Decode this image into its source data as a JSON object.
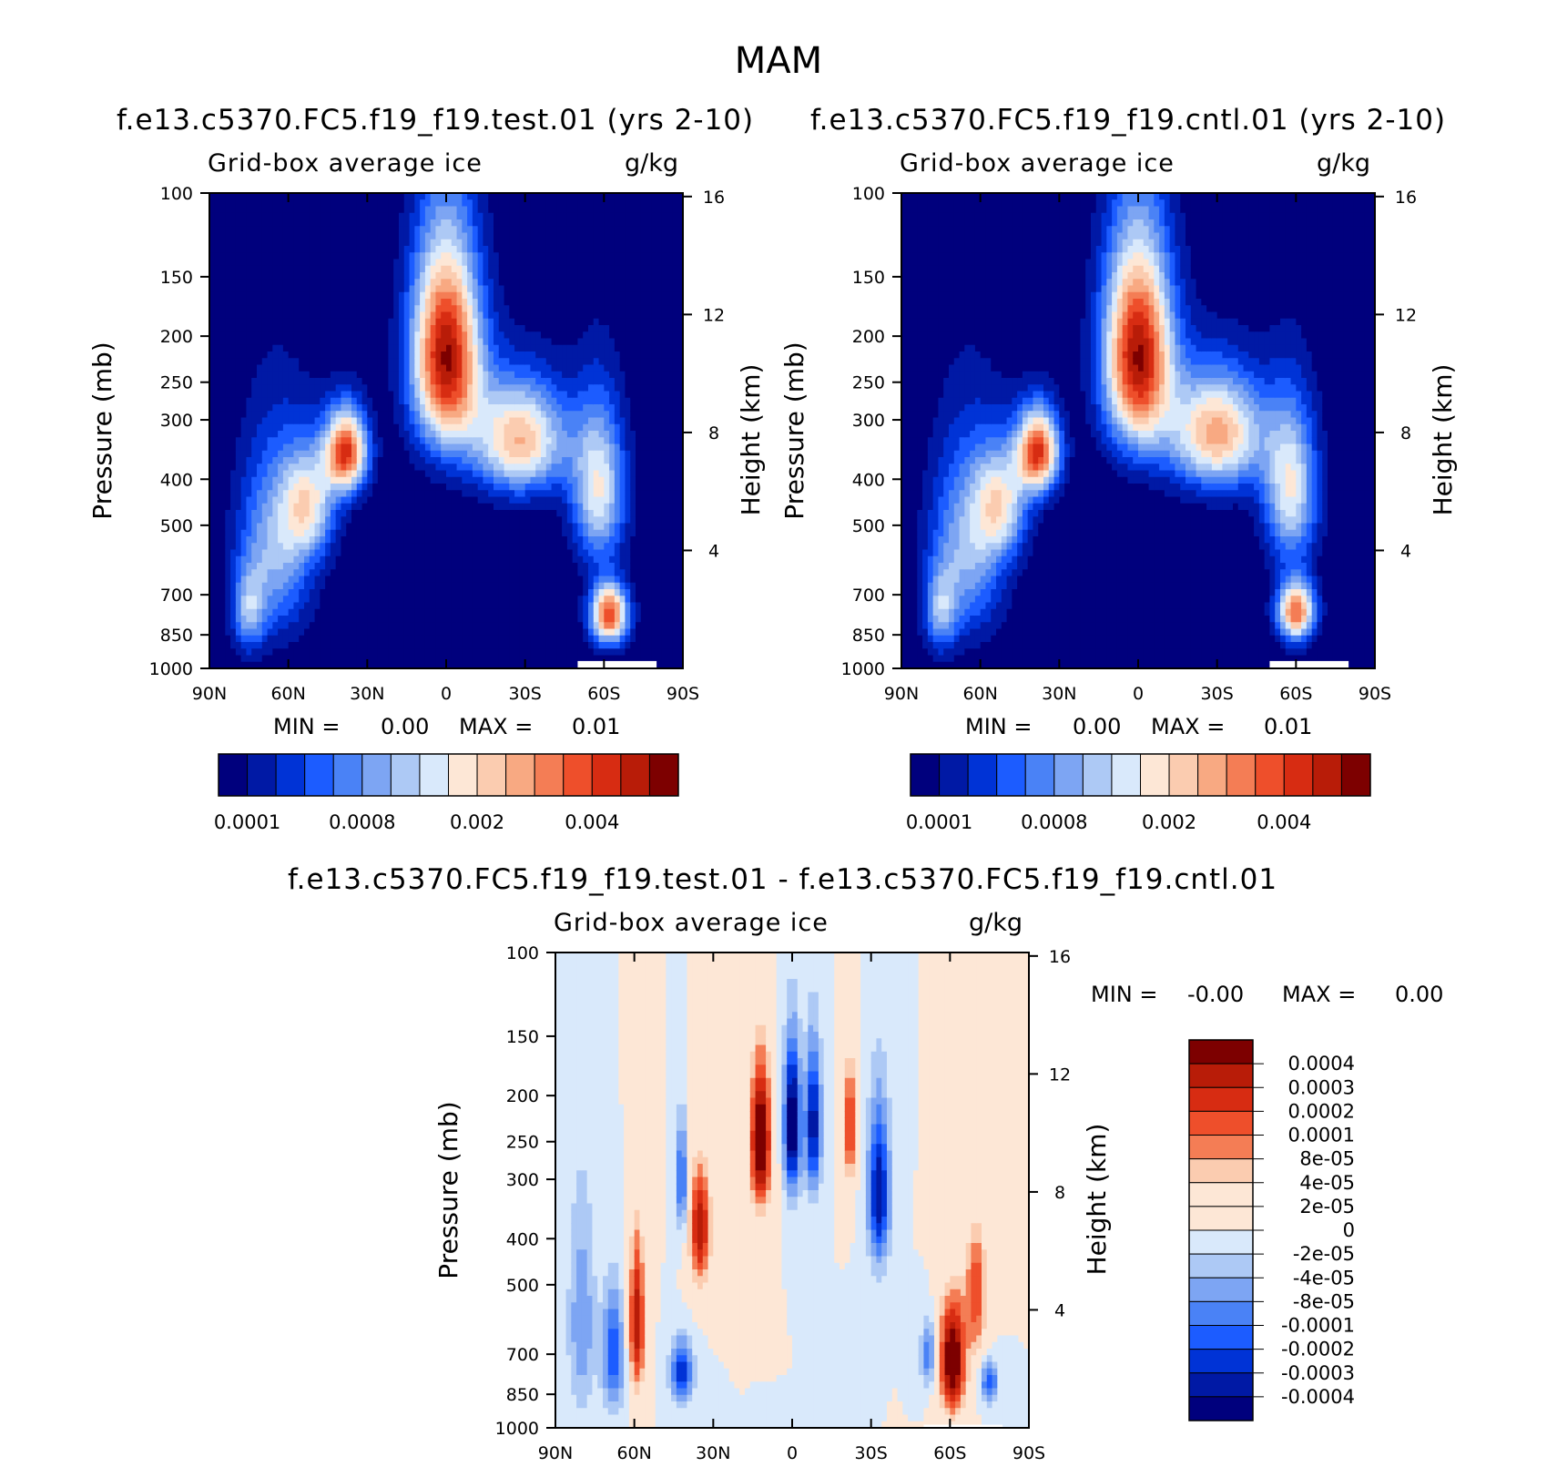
{
  "page": {
    "title": "MAM"
  },
  "chart_data": [
    {
      "type": "heatmap",
      "title": "f.e13.c5370.FC5.f19_f19.test.01 (yrs 2-10)",
      "subtitle_left": "Grid-box average ice",
      "subtitle_right": "g/kg",
      "xlabel": "",
      "ylabel": "Pressure (mb)",
      "y2label": "Height (km)",
      "x_ticks": [
        "90N",
        "60N",
        "30N",
        "0",
        "30S",
        "60S",
        "90S"
      ],
      "y_ticks": [
        "100",
        "150",
        "200",
        "250",
        "300",
        "400",
        "500",
        "700",
        "850",
        "1000"
      ],
      "y_tick_values": [
        100,
        150,
        200,
        250,
        300,
        400,
        500,
        700,
        850,
        1000
      ],
      "y2_ticks": [
        "16",
        "12",
        "8",
        "4"
      ],
      "y2_tick_values": [
        16,
        12,
        8,
        4
      ],
      "xlim": [
        90,
        -90
      ],
      "ylim": [
        1000,
        100
      ],
      "min_label": "MIN =",
      "min_value": "0.00",
      "max_label": "MAX =",
      "max_value": "0.01",
      "colorbar_labels": [
        "0.0001",
        "0.0008",
        "0.002",
        "0.004"
      ],
      "colorbar_colors": [
        "#00007d",
        "#0019a5",
        "#0033d6",
        "#1c5cff",
        "#4a82f6",
        "#7da5f3",
        "#adc9f5",
        "#d9e9fb",
        "#fde7d6",
        "#fbccb0",
        "#f8a982",
        "#f47d55",
        "#ee4f2b",
        "#d72c12",
        "#b81c08",
        "#7d0000"
      ],
      "fields": [
        {
          "x": 0,
          "y": 220,
          "sx": 13,
          "sy": 110,
          "amp": 15
        },
        {
          "x": 38,
          "y": 350,
          "sx": 8,
          "sy": 70,
          "amp": 13
        },
        {
          "x": -28,
          "y": 330,
          "sx": 18,
          "sy": 90,
          "amp": 10
        },
        {
          "x": -58,
          "y": 420,
          "sx": 10,
          "sy": 160,
          "amp": 8
        },
        {
          "x": -62,
          "y": 770,
          "sx": 7,
          "sy": 110,
          "amp": 13
        },
        {
          "x": 65,
          "y": 560,
          "sx": 14,
          "sy": 260,
          "amp": 6
        },
        {
          "x": 75,
          "y": 760,
          "sx": 6,
          "sy": 150,
          "amp": 5
        },
        {
          "x": 52,
          "y": 450,
          "sx": 10,
          "sy": 120,
          "amp": 7
        }
      ],
      "masked_region": {
        "x": [
          -50,
          -80
        ],
        "p": [
          965,
          1000
        ]
      }
    },
    {
      "type": "heatmap",
      "title": "f.e13.c5370.FC5.f19_f19.cntl.01 (yrs 2-10)",
      "subtitle_left": "Grid-box average ice",
      "subtitle_right": "g/kg",
      "xlabel": "",
      "ylabel": "Pressure (mb)",
      "y2label": "Height (km)",
      "x_ticks": [
        "90N",
        "60N",
        "30N",
        "0",
        "30S",
        "60S",
        "90S"
      ],
      "y_ticks": [
        "100",
        "150",
        "200",
        "250",
        "300",
        "400",
        "500",
        "700",
        "850",
        "1000"
      ],
      "y_tick_values": [
        100,
        150,
        200,
        250,
        300,
        400,
        500,
        700,
        850,
        1000
      ],
      "y2_ticks": [
        "16",
        "12",
        "8",
        "4"
      ],
      "y2_tick_values": [
        16,
        12,
        8,
        4
      ],
      "xlim": [
        90,
        -90
      ],
      "ylim": [
        1000,
        100
      ],
      "min_label": "MIN =",
      "min_value": "0.00",
      "max_label": "MAX =",
      "max_value": "0.01",
      "colorbar_labels": [
        "0.0001",
        "0.0008",
        "0.002",
        "0.004"
      ],
      "colorbar_colors": [
        "#00007d",
        "#0019a5",
        "#0033d6",
        "#1c5cff",
        "#4a82f6",
        "#7da5f3",
        "#adc9f5",
        "#d9e9fb",
        "#fde7d6",
        "#fbccb0",
        "#f8a982",
        "#f47d55",
        "#ee4f2b",
        "#d72c12",
        "#b81c08",
        "#7d0000"
      ],
      "fields": [
        {
          "x": 0,
          "y": 220,
          "sx": 13,
          "sy": 110,
          "amp": 15
        },
        {
          "x": 38,
          "y": 350,
          "sx": 8,
          "sy": 70,
          "amp": 13
        },
        {
          "x": -30,
          "y": 320,
          "sx": 18,
          "sy": 90,
          "amp": 10.5
        },
        {
          "x": -58,
          "y": 420,
          "sx": 10,
          "sy": 160,
          "amp": 8
        },
        {
          "x": -60,
          "y": 760,
          "sx": 7,
          "sy": 110,
          "amp": 12
        },
        {
          "x": 65,
          "y": 560,
          "sx": 14,
          "sy": 260,
          "amp": 6
        },
        {
          "x": 75,
          "y": 760,
          "sx": 6,
          "sy": 150,
          "amp": 5
        },
        {
          "x": 52,
          "y": 450,
          "sx": 10,
          "sy": 120,
          "amp": 7
        }
      ],
      "masked_region": {
        "x": [
          -50,
          -80
        ],
        "p": [
          965,
          1000
        ]
      }
    },
    {
      "type": "heatmap",
      "title": "f.e13.c5370.FC5.f19_f19.test.01 - f.e13.c5370.FC5.f19_f19.cntl.01",
      "subtitle_left": "Grid-box average ice",
      "subtitle_right": "g/kg",
      "xlabel": "",
      "ylabel": "Pressure (mb)",
      "y2label": "Height (km)",
      "x_ticks": [
        "90N",
        "60N",
        "30N",
        "0",
        "30S",
        "60S",
        "90S"
      ],
      "y_ticks": [
        "100",
        "150",
        "200",
        "250",
        "300",
        "400",
        "500",
        "700",
        "850",
        "1000"
      ],
      "y_tick_values": [
        100,
        150,
        200,
        250,
        300,
        400,
        500,
        700,
        850,
        1000
      ],
      "y2_ticks": [
        "16",
        "12",
        "8",
        "4"
      ],
      "y2_tick_values": [
        16,
        12,
        8,
        4
      ],
      "xlim": [
        90,
        -90
      ],
      "ylim": [
        1000,
        100
      ],
      "min_label": "MIN =",
      "min_value": "-0.00",
      "max_label": "MAX =",
      "max_value": "0.00",
      "colorbar_labels": [
        "0.0004",
        "0.0003",
        "0.0002",
        "0.0001",
        "8e-05",
        "4e-05",
        "2e-05",
        "0",
        "-2e-05",
        "-4e-05",
        "-8e-05",
        "-0.0001",
        "-0.0002",
        "-0.0003",
        "-0.0004"
      ],
      "colorbar_colors": [
        "#7d0000",
        "#b81c08",
        "#d72c12",
        "#ee4f2b",
        "#f47d55",
        "#fbccb0",
        "#fde7d6",
        "#fde7d6",
        "#d9e9fb",
        "#adc9f5",
        "#7da5f3",
        "#4a82f6",
        "#1c5cff",
        "#0033d6",
        "#0019a5",
        "#00007d"
      ],
      "fields": [
        {
          "x": 12,
          "y": 250,
          "sx": 4,
          "sy": 90,
          "amp": 9
        },
        {
          "x": 0,
          "y": 230,
          "sx": 3,
          "sy": 80,
          "amp": -9
        },
        {
          "x": -8,
          "y": 230,
          "sx": 3,
          "sy": 80,
          "amp": -7
        },
        {
          "x": -22,
          "y": 230,
          "sx": 2,
          "sy": 70,
          "amp": 6
        },
        {
          "x": -33,
          "y": 320,
          "sx": 4,
          "sy": 120,
          "amp": -7
        },
        {
          "x": 35,
          "y": 380,
          "sx": 4,
          "sy": 110,
          "amp": 7
        },
        {
          "x": 42,
          "y": 300,
          "sx": 2,
          "sy": 80,
          "amp": -5
        },
        {
          "x": 59,
          "y": 600,
          "sx": 3,
          "sy": 230,
          "amp": 7
        },
        {
          "x": 68,
          "y": 700,
          "sx": 4,
          "sy": 200,
          "amp": -5
        },
        {
          "x": 42,
          "y": 760,
          "sx": 4,
          "sy": 110,
          "amp": -6
        },
        {
          "x": -61,
          "y": 720,
          "sx": 5,
          "sy": 200,
          "amp": 9
        },
        {
          "x": -70,
          "y": 520,
          "sx": 4,
          "sy": 160,
          "amp": 5
        },
        {
          "x": -52,
          "y": 700,
          "sx": 3,
          "sy": 110,
          "amp": -4
        },
        {
          "x": -75,
          "y": 800,
          "sx": 3,
          "sy": 80,
          "amp": -5
        },
        {
          "x": 80,
          "y": 600,
          "sx": 5,
          "sy": 300,
          "amp": -3
        }
      ],
      "masked_region": {
        "x": [
          -50,
          -80
        ],
        "p": [
          985,
          1000
        ]
      }
    }
  ]
}
